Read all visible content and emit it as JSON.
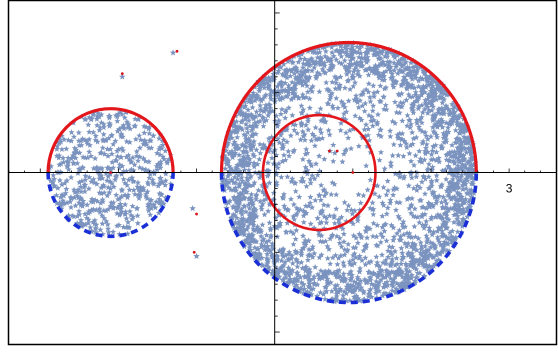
{
  "chart_data": {
    "type": "scatter",
    "title": "",
    "xlabel": "",
    "ylabel": "",
    "xlim": [
      -3.4,
      3.6
    ],
    "ylim": [
      -2.15,
      2.15
    ],
    "x_tick_labels": [
      {
        "value": 3,
        "label": "3"
      }
    ],
    "grid": false,
    "legend": "none",
    "colors": {
      "points": "#7b93bf",
      "upper_arc": "#e3161b",
      "lower_arc": "#1a2fd6",
      "markers": "#d4141a",
      "axes": "#000000",
      "frame": "#000000"
    },
    "disks": [
      {
        "name": "small-disk",
        "cx": -2.1,
        "cy": 0.0,
        "r": 0.8,
        "inner_r": 0,
        "count": 520
      },
      {
        "name": "annulus",
        "cx": 0.95,
        "cy": 0.0,
        "r": 1.63,
        "inner_r": 0.0,
        "count": 2800
      }
    ],
    "circles": [
      {
        "name": "small-circle",
        "cx": -2.1,
        "cy": 0.0,
        "r": 0.8
      },
      {
        "name": "outer-circle",
        "cx": 0.95,
        "cy": 0.0,
        "r": 1.63
      },
      {
        "name": "inner-circle",
        "cx": 0.57,
        "cy": 0.0,
        "r": 0.72
      }
    ],
    "isolated_points": [
      {
        "x": -1.3,
        "y": 1.5
      },
      {
        "x": -1.95,
        "y": 1.2
      },
      {
        "x": -1.05,
        "y": -0.45
      },
      {
        "x": -1.0,
        "y": -1.05
      }
    ],
    "red_dots": [
      {
        "x": -1.25,
        "y": 1.52
      },
      {
        "x": -1.95,
        "y": 1.24
      },
      {
        "x": -1.0,
        "y": -0.52
      },
      {
        "x": -1.03,
        "y": -1.0
      },
      {
        "x": 0.7,
        "y": 0.27
      },
      {
        "x": 0.8,
        "y": 0.27
      },
      {
        "x": -2.1,
        "y": 0.0
      },
      {
        "x": 1.0,
        "y": 0.0
      }
    ]
  }
}
